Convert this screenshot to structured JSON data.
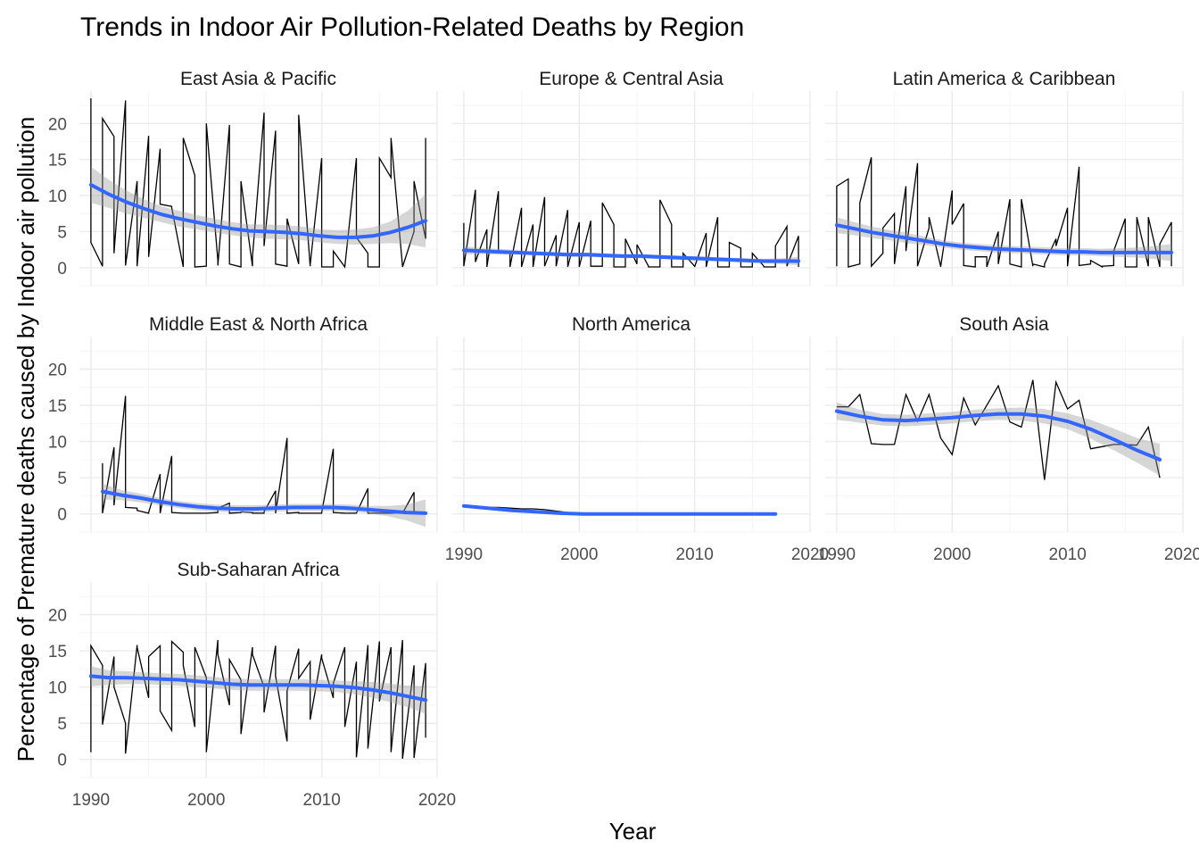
{
  "chart_data": {
    "type": "line",
    "title": "Trends in Indoor Air Pollution-Related Deaths by Region",
    "xlabel": "Year",
    "ylabel": "Percentage of Premature deaths caused by Indoor air pollution",
    "xlim": [
      1989,
      2020
    ],
    "ylim": [
      -2.5,
      24.5
    ],
    "x_ticks": [
      1990,
      2000,
      2010,
      2020
    ],
    "y_ticks": [
      0,
      5,
      10,
      15,
      20
    ],
    "grid": true,
    "legend": "none",
    "colors": {
      "raw": "#000000",
      "smooth": "#3366ff",
      "ribbon": "#999999"
    },
    "facets": [
      {
        "name": "East Asia & Pacific",
        "x": [
          1990,
          1990,
          1991,
          1991,
          1992,
          1992,
          1993,
          1993,
          1994,
          1994,
          1995,
          1995,
          1996,
          1996,
          1997,
          1997,
          1998,
          1998,
          1999,
          1999,
          2000,
          2000,
          2001,
          2001,
          2002,
          2002,
          2003,
          2003,
          2004,
          2004,
          2005,
          2005,
          2006,
          2006,
          2007,
          2007,
          2008,
          2008,
          2009,
          2009,
          2010,
          2010,
          2011,
          2011,
          2012,
          2012,
          2013,
          2013,
          2014,
          2014,
          2015,
          2015,
          2016,
          2016,
          2017,
          2017,
          2018,
          2018,
          2019,
          2019
        ],
        "y": [
          23.5,
          3.5,
          0.2,
          20.7,
          18.2,
          2.0,
          23.2,
          0.3,
          12.0,
          0.2,
          18.3,
          1.5,
          16.5,
          8.8,
          8.5,
          8.3,
          0.1,
          18.0,
          12.8,
          0.1,
          0.2,
          20.0,
          1.0,
          0.3,
          19.8,
          0.5,
          0.1,
          12.0,
          0.2,
          1.5,
          21.5,
          3.0,
          19.0,
          0.5,
          0.2,
          6.8,
          0.5,
          21.2,
          0.2,
          0.4,
          15.2,
          0.1,
          0.1,
          2.3,
          0.1,
          0.1,
          15.2,
          4.2,
          2.0,
          0.1,
          0.1,
          15.2,
          12.5,
          18.0,
          0.2,
          0.1,
          5.0,
          12.0,
          4.0,
          18.0
        ],
        "smooth": [
          11.5,
          10.2,
          9.1,
          8.2,
          7.4,
          6.8,
          6.3,
          5.8,
          5.4,
          5.1,
          5.0,
          4.9,
          4.7,
          4.4,
          4.2,
          4.2,
          4.4,
          4.9,
          5.6,
          6.5
        ],
        "ci_lower": [
          9.0,
          8.3,
          7.5,
          6.9,
          6.3,
          5.7,
          5.3,
          4.9,
          4.5,
          4.2,
          4.0,
          3.9,
          3.8,
          3.5,
          3.3,
          3.2,
          3.3,
          3.4,
          3.3,
          2.8
        ],
        "ci_upper": [
          14.0,
          12.2,
          10.7,
          9.5,
          8.5,
          7.9,
          7.3,
          6.8,
          6.3,
          6.0,
          6.0,
          5.9,
          5.7,
          5.3,
          5.2,
          5.3,
          5.6,
          6.4,
          7.9,
          10.2
        ]
      },
      {
        "name": "Europe & Central Asia",
        "x": [
          1990,
          1990,
          1991,
          1991,
          1992,
          1992,
          1993,
          1993,
          1994,
          1994,
          1995,
          1995,
          1996,
          1996,
          1997,
          1997,
          1998,
          1998,
          1999,
          1999,
          2000,
          2000,
          2001,
          2001,
          2002,
          2002,
          2003,
          2003,
          2004,
          2004,
          2005,
          2005,
          2006,
          2006,
          2007,
          2007,
          2008,
          2008,
          2009,
          2009,
          2010,
          2010,
          2011,
          2011,
          2012,
          2012,
          2013,
          2013,
          2014,
          2014,
          2015,
          2015,
          2016,
          2016,
          2017,
          2017,
          2018,
          2018,
          2019,
          2019
        ],
        "y": [
          6.2,
          0.2,
          10.8,
          0.8,
          5.3,
          0.1,
          10.6,
          2.3,
          2.0,
          0.1,
          8.3,
          0.1,
          6.0,
          0.1,
          9.8,
          0.2,
          4.5,
          0.2,
          8.0,
          0.1,
          6.3,
          0.1,
          6.5,
          0.2,
          0.2,
          9.0,
          6.0,
          0.1,
          0.1,
          4.0,
          0.5,
          3.2,
          0.2,
          0.1,
          0.1,
          9.4,
          6.0,
          0.1,
          0.1,
          2.0,
          0.2,
          0.1,
          4.8,
          0.1,
          7.0,
          0.1,
          0.1,
          3.5,
          2.7,
          0.1,
          0.1,
          2.0,
          0.2,
          0.1,
          0.1,
          3.0,
          5.7,
          0.2,
          4.4,
          0.1
        ],
        "smooth": [
          2.4,
          2.3,
          2.2,
          2.1,
          2.0,
          1.9,
          1.8,
          1.8,
          1.7,
          1.6,
          1.6,
          1.5,
          1.4,
          1.3,
          1.2,
          1.1,
          1.0,
          0.9,
          0.9,
          0.9
        ],
        "ci_lower": [
          1.8,
          1.9,
          1.8,
          1.8,
          1.7,
          1.6,
          1.5,
          1.5,
          1.4,
          1.3,
          1.3,
          1.2,
          1.1,
          1.0,
          0.9,
          0.8,
          0.7,
          0.6,
          0.5,
          0.3
        ],
        "ci_upper": [
          3.0,
          2.7,
          2.6,
          2.4,
          2.3,
          2.2,
          2.1,
          2.1,
          2.0,
          1.9,
          1.9,
          1.8,
          1.7,
          1.6,
          1.5,
          1.4,
          1.3,
          1.2,
          1.3,
          1.5
        ]
      },
      {
        "name": "Latin America & Caribbean",
        "x": [
          1990,
          1990,
          1991,
          1991,
          1992,
          1992,
          1993,
          1993,
          1994,
          1994,
          1995,
          1995,
          1996,
          1996,
          1997,
          1997,
          1998,
          1998,
          1999,
          1999,
          2000,
          2000,
          2001,
          2001,
          2002,
          2002,
          2003,
          2003,
          2004,
          2004,
          2005,
          2005,
          2006,
          2006,
          2007,
          2007,
          2008,
          2008,
          2009,
          2009,
          2010,
          2010,
          2011,
          2011,
          2012,
          2012,
          2013,
          2013,
          2014,
          2014,
          2015,
          2015,
          2016,
          2016,
          2017,
          2017,
          2018,
          2018,
          2019,
          2019
        ],
        "y": [
          0.2,
          11.3,
          12.3,
          0.1,
          0.5,
          9.0,
          15.3,
          0.2,
          2.0,
          5.5,
          7.5,
          0.5,
          11.3,
          2.3,
          14.5,
          0.2,
          5.5,
          7.0,
          0.2,
          0.1,
          10.7,
          6.0,
          8.9,
          0.3,
          0.1,
          1.5,
          1.5,
          0.1,
          5.0,
          0.5,
          9.5,
          0.5,
          0.1,
          9.5,
          0.2,
          0.5,
          0.1,
          0.5,
          4.0,
          3.0,
          8.3,
          0.2,
          14.0,
          0.3,
          0.5,
          1.0,
          0.1,
          0.2,
          0.3,
          2.3,
          6.8,
          0.1,
          0.1,
          7.0,
          0.2,
          7.0,
          0.1,
          3.3,
          6.3,
          0.2
        ],
        "smooth": [
          5.9,
          5.4,
          4.9,
          4.5,
          4.1,
          3.7,
          3.3,
          3.0,
          2.8,
          2.6,
          2.5,
          2.4,
          2.3,
          2.2,
          2.2,
          2.1,
          2.1,
          2.1,
          2.1,
          2.1
        ],
        "ci_lower": [
          4.8,
          4.5,
          4.1,
          3.8,
          3.4,
          3.1,
          2.8,
          2.5,
          2.3,
          2.1,
          2.0,
          1.9,
          1.8,
          1.7,
          1.7,
          1.6,
          1.5,
          1.4,
          1.2,
          0.9
        ],
        "ci_upper": [
          7.0,
          6.3,
          5.7,
          5.2,
          4.8,
          4.3,
          3.8,
          3.5,
          3.3,
          3.1,
          3.0,
          2.9,
          2.8,
          2.7,
          2.7,
          2.6,
          2.7,
          2.8,
          3.0,
          3.3
        ]
      },
      {
        "name": "Middle East & North Africa",
        "x": [
          1991,
          1991,
          1992,
          1992,
          1993,
          1993,
          1994,
          1994,
          1995,
          1995,
          1996,
          1996,
          1997,
          1997,
          1998,
          1998,
          1999,
          1999,
          2000,
          2000,
          2001,
          2001,
          2002,
          2002,
          2003,
          2003,
          2004,
          2004,
          2005,
          2005,
          2006,
          2006,
          2007,
          2007,
          2008,
          2008,
          2009,
          2009,
          2010,
          2010,
          2011,
          2011,
          2012,
          2012,
          2013,
          2013,
          2014,
          2014,
          2015,
          2015,
          2016,
          2016,
          2017,
          2017,
          2018,
          2018,
          2019,
          2019
        ],
        "y": [
          7.0,
          0.1,
          9.2,
          1.2,
          16.3,
          0.9,
          0.8,
          0.5,
          0.1,
          0.2,
          5.5,
          0.1,
          8.0,
          0.2,
          0.1,
          0.1,
          0.1,
          0.1,
          0.1,
          0.1,
          0.2,
          0.8,
          1.5,
          0.1,
          0.2,
          0.3,
          0.2,
          0.1,
          0.1,
          0.3,
          3.2,
          0.1,
          10.5,
          0.1,
          0.2,
          0.1,
          0.1,
          0.1,
          0.1,
          0.2,
          9.0,
          0.2,
          0.1,
          0.1,
          0.1,
          0.1,
          3.5,
          0.1,
          0.1,
          0.1,
          0.1,
          0.1,
          0.2,
          0.1,
          3.0,
          0.1,
          0.1,
          0.1
        ],
        "smooth": [
          3.1,
          2.6,
          2.2,
          1.7,
          1.3,
          1.0,
          0.8,
          0.7,
          0.7,
          0.8,
          0.9,
          0.9,
          0.9,
          0.8,
          0.6,
          0.4,
          0.2,
          0.1
        ],
        "ci_lower": [
          2.0,
          1.9,
          1.6,
          1.2,
          0.8,
          0.5,
          0.3,
          0.2,
          0.2,
          0.3,
          0.4,
          0.4,
          0.4,
          0.3,
          0.1,
          -0.3,
          -0.9,
          -1.8
        ],
        "ci_upper": [
          4.2,
          3.3,
          2.8,
          2.2,
          1.8,
          1.5,
          1.3,
          1.2,
          1.2,
          1.3,
          1.4,
          1.4,
          1.4,
          1.3,
          1.1,
          1.1,
          1.3,
          2.0
        ]
      },
      {
        "name": "North America",
        "x": [
          1990,
          1991,
          1992,
          1993,
          1994,
          1995,
          1996,
          1997,
          1998,
          1999,
          2000,
          2001,
          2002,
          2003,
          2004,
          2005,
          2006,
          2007,
          2008,
          2009,
          2010,
          2011,
          2012,
          2013,
          2014,
          2015,
          2016,
          2017
        ],
        "y": [
          1.2,
          1.0,
          0.9,
          0.9,
          0.8,
          0.7,
          0.7,
          0.6,
          0.4,
          0.2,
          0.1,
          0.1,
          0.1,
          0.1,
          0.1,
          0.1,
          0.1,
          0.1,
          0.1,
          0.1,
          0.1,
          0.1,
          0.1,
          0.1,
          0.1,
          0.1,
          0.1,
          0.1
        ],
        "smooth": [
          1.1,
          0.8,
          0.5,
          0.3,
          0.1,
          0.0,
          0.0,
          0.0,
          0.0,
          0.0,
          0.0,
          0.0,
          0.0,
          0.0
        ],
        "ci_lower": [
          1.0,
          0.7,
          0.4,
          0.2,
          0.0,
          -0.1,
          -0.1,
          -0.1,
          -0.1,
          -0.1,
          -0.1,
          -0.1,
          -0.1,
          -0.1
        ],
        "ci_upper": [
          1.2,
          0.9,
          0.6,
          0.4,
          0.2,
          0.1,
          0.1,
          0.1,
          0.1,
          0.1,
          0.1,
          0.1,
          0.1,
          0.1
        ]
      },
      {
        "name": "South Asia",
        "x": [
          1990,
          1991,
          1992,
          1993,
          1994,
          1995,
          1996,
          1997,
          1998,
          1999,
          2000,
          2001,
          2002,
          2003,
          2004,
          2005,
          2006,
          2007,
          2008,
          2009,
          2010,
          2011,
          2012,
          2013,
          2014,
          2015,
          2016,
          2017,
          2018
        ],
        "y": [
          14.8,
          14.8,
          16.5,
          9.7,
          9.6,
          9.6,
          16.5,
          12.8,
          16.5,
          10.5,
          8.2,
          16.0,
          12.3,
          15.0,
          17.7,
          12.7,
          12.0,
          18.5,
          4.7,
          18.2,
          14.5,
          15.7,
          9.0,
          9.3,
          9.6,
          9.6,
          9.5,
          12.0,
          5.0
        ],
        "smooth": [
          14.2,
          13.5,
          13.0,
          12.9,
          13.1,
          13.3,
          13.6,
          13.8,
          13.8,
          13.5,
          12.8,
          11.7,
          10.3,
          8.8,
          7.5
        ],
        "ci_lower": [
          13.0,
          12.6,
          12.2,
          12.1,
          12.3,
          12.5,
          12.8,
          13.0,
          12.9,
          12.5,
          11.7,
          10.4,
          8.8,
          7.1,
          5.3
        ],
        "ci_upper": [
          15.4,
          14.4,
          13.8,
          13.7,
          13.9,
          14.1,
          14.4,
          14.6,
          14.7,
          14.5,
          13.9,
          13.0,
          11.8,
          10.5,
          9.7
        ]
      },
      {
        "name": "Sub-Saharan Africa",
        "x": [
          1990,
          1990,
          1991,
          1991,
          1992,
          1992,
          1993,
          1993,
          1994,
          1994,
          1995,
          1995,
          1996,
          1996,
          1997,
          1997,
          1998,
          1998,
          1999,
          1999,
          2000,
          2000,
          2001,
          2001,
          2002,
          2002,
          2003,
          2003,
          2004,
          2004,
          2005,
          2005,
          2006,
          2006,
          2007,
          2007,
          2008,
          2008,
          2009,
          2009,
          2010,
          2010,
          2011,
          2011,
          2012,
          2012,
          2013,
          2013,
          2014,
          2014,
          2015,
          2015,
          2016,
          2016,
          2017,
          2017,
          2018,
          2018,
          2019,
          2019
        ],
        "y": [
          1.0,
          15.7,
          13.0,
          4.8,
          14.2,
          10.0,
          5.0,
          0.8,
          15.8,
          15.5,
          8.5,
          14.2,
          15.7,
          6.7,
          4.0,
          16.3,
          14.8,
          13.0,
          4.5,
          15.5,
          11.3,
          1.0,
          16.5,
          14.5,
          7.5,
          13.8,
          11.0,
          3.5,
          15.5,
          14.5,
          10.0,
          6.5,
          15.7,
          11.5,
          2.5,
          9.5,
          15.3,
          11.2,
          13.5,
          5.5,
          14.5,
          14.0,
          8.5,
          10.5,
          15.5,
          4.5,
          13.5,
          0.3,
          15.8,
          1.5,
          16.3,
          8.0,
          15.5,
          1.0,
          16.5,
          0.1,
          13.0,
          0.2,
          13.3,
          3.0
        ],
        "smooth": [
          11.5,
          11.3,
          11.3,
          11.2,
          11.1,
          11.0,
          10.8,
          10.6,
          10.4,
          10.3,
          10.3,
          10.3,
          10.3,
          10.2,
          10.1,
          9.9,
          9.6,
          9.2,
          8.7,
          8.2
        ],
        "ci_lower": [
          10.1,
          10.3,
          10.4,
          10.4,
          10.3,
          10.2,
          10.0,
          9.8,
          9.6,
          9.5,
          9.5,
          9.5,
          9.5,
          9.4,
          9.3,
          9.0,
          8.5,
          7.9,
          7.2,
          6.3
        ],
        "ci_upper": [
          12.9,
          12.3,
          12.2,
          12.0,
          11.9,
          11.8,
          11.6,
          11.4,
          11.2,
          11.1,
          11.1,
          11.1,
          11.1,
          11.0,
          10.9,
          10.8,
          10.7,
          10.5,
          10.2,
          10.1
        ]
      }
    ]
  }
}
